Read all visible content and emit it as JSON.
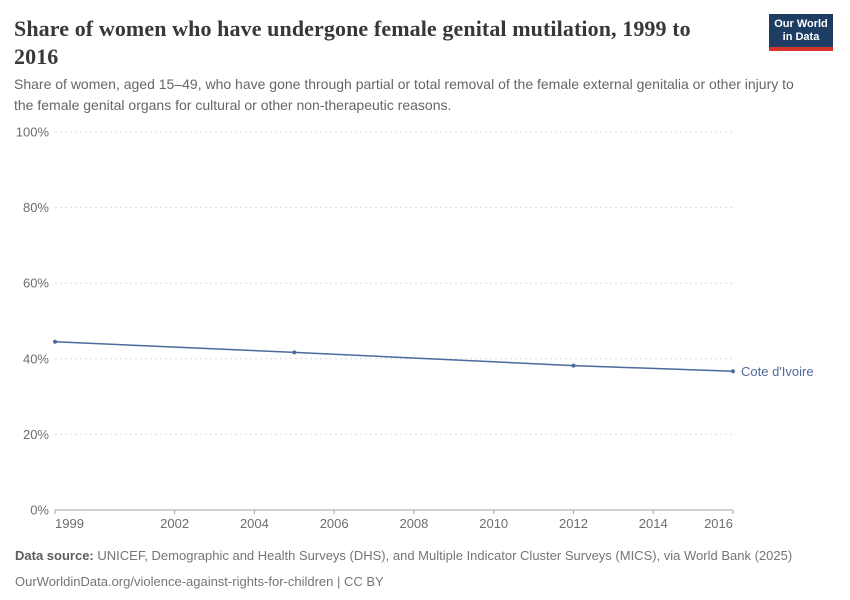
{
  "header": {
    "title": "Share of women who have undergone female genital mutilation, 1999 to 2016",
    "subtitle": "Share of women, aged 15–49, who have gone through partial or total removal of the female external genitalia or other injury to the female genital organs for cultural or other non-therapeutic reasons."
  },
  "logo": {
    "line1": "Our World",
    "line2": "in Data",
    "bg_color": "#1d3d63",
    "bar_color": "#d7352c"
  },
  "chart_data": {
    "type": "line",
    "title": "Share of women who have undergone female genital mutilation, 1999 to 2016",
    "xlabel": "",
    "ylabel": "",
    "xlim": [
      1999,
      2016
    ],
    "ylim": [
      0,
      100
    ],
    "x_ticks": [
      1999,
      2002,
      2004,
      2006,
      2008,
      2010,
      2012,
      2014,
      2016
    ],
    "y_ticks": [
      0,
      20,
      40,
      60,
      80,
      100
    ],
    "y_tick_suffix": "%",
    "grid": true,
    "legend_position": "end-of-line-label",
    "series": [
      {
        "name": "Cote d'Ivoire",
        "color": "#4c6a9c",
        "x": [
          1999,
          2005,
          2012,
          2016
        ],
        "values": [
          44.5,
          41.7,
          38.2,
          36.7
        ]
      }
    ]
  },
  "footer": {
    "source_label": "Data source:",
    "source_text": "UNICEF, Demographic and Health Surveys (DHS), and Multiple Indicator Cluster Surveys (MICS), via World Bank (2025)",
    "note": "OurWorldinData.org/violence-against-rights-for-children | CC BY"
  },
  "colors": {
    "line": "#4c6a9c",
    "gridline": "#dcdcdc",
    "axis": "#a5a5a5",
    "title_text": "#383838",
    "subtitle_text": "#666666",
    "tick_text": "#6e6e6e"
  }
}
